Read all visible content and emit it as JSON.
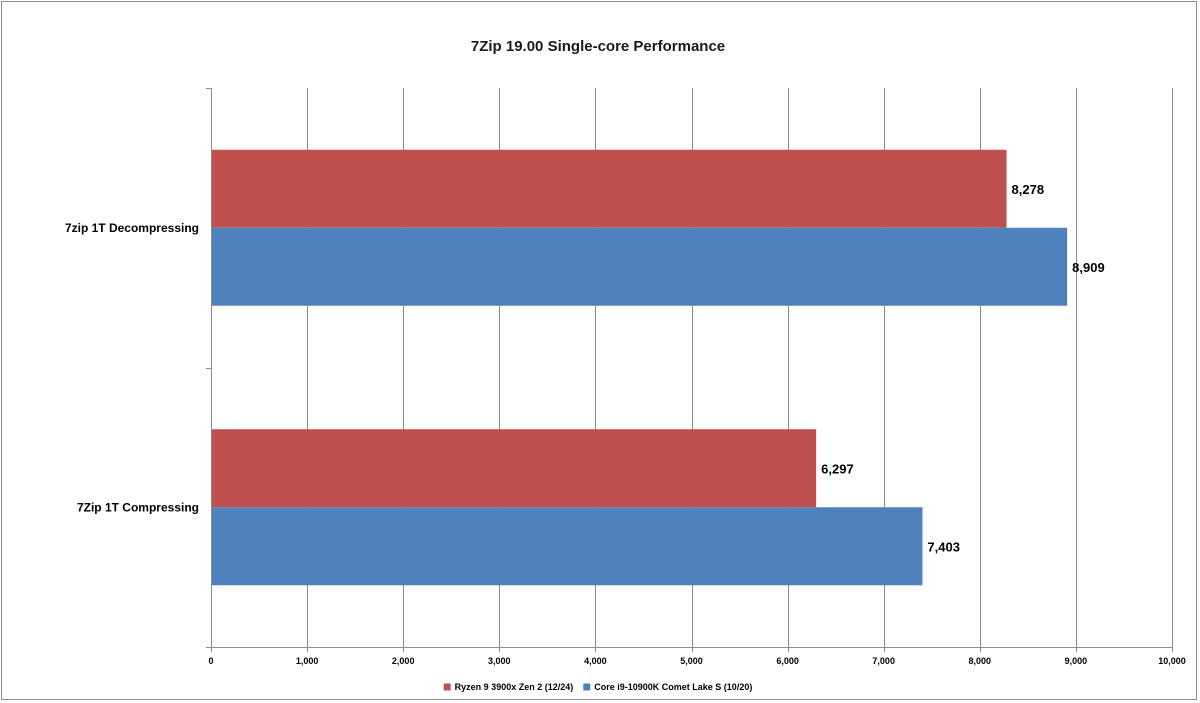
{
  "chart_data": {
    "type": "bar",
    "orientation": "horizontal",
    "title": "7Zip 19.00 Single-core Performance",
    "categories": [
      "7Zip 1T Compressing",
      "7zip 1T Decompressing"
    ],
    "series": [
      {
        "name": "Ryzen 9 3900x Zen 2 (12/24)",
        "values": [
          6297,
          8278
        ],
        "labels": [
          "6,297",
          "8,278"
        ],
        "color": "#c0504d"
      },
      {
        "name": "Core i9-10900K Comet Lake S (10/20)",
        "values": [
          7403,
          8909
        ],
        "labels": [
          "7,403",
          "8,909"
        ],
        "color": "#4f81bd"
      }
    ],
    "xlim": [
      0,
      10000
    ],
    "xticks": [
      0,
      1000,
      2000,
      3000,
      4000,
      5000,
      6000,
      7000,
      8000,
      9000,
      10000
    ],
    "xtick_labels": [
      "0",
      "1,000",
      "2,000",
      "3,000",
      "4,000",
      "5,000",
      "6,000",
      "7,000",
      "8,000",
      "9,000",
      "10,000"
    ],
    "grid": "vertical",
    "legend": "bottom"
  }
}
